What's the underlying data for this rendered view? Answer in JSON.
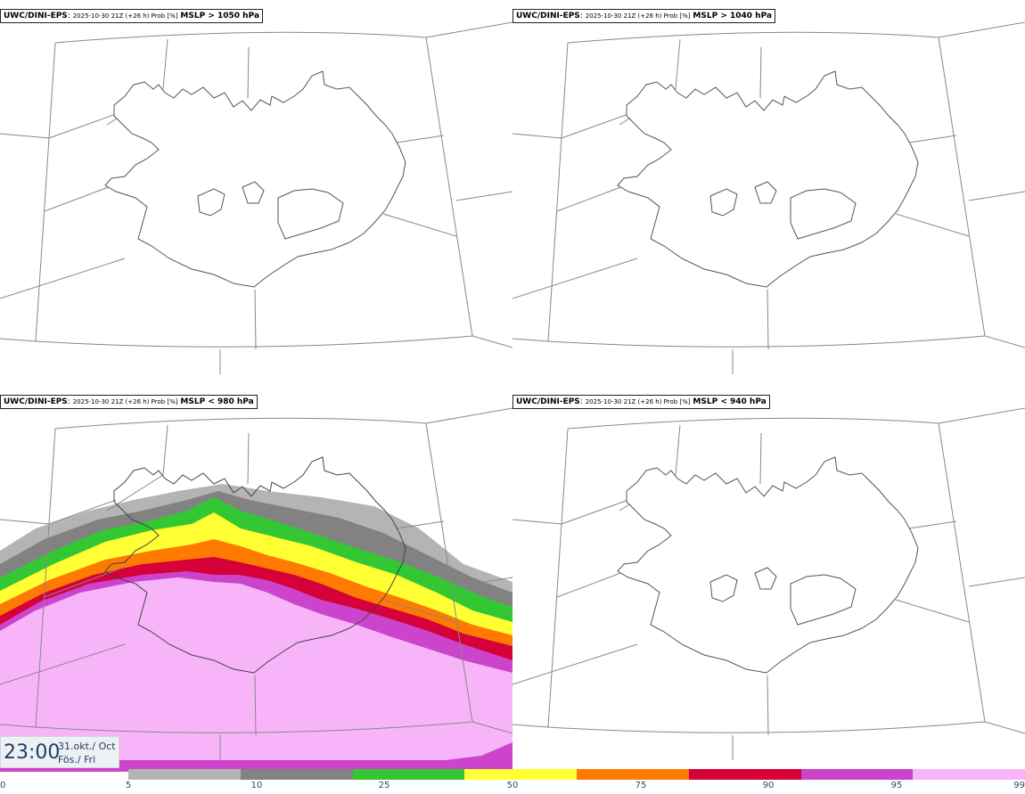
{
  "panels": [
    {
      "model": "UWC/DINI-EPS",
      "meta": "2025-10-30 21Z (+26 h) Prob [%]",
      "param": "MSLP > 1050 hPa",
      "filled": false
    },
    {
      "model": "UWC/DINI-EPS",
      "meta": "2025-10-30 21Z (+26 h) Prob [%]",
      "param": "MSLP > 1040 hPa",
      "filled": false
    },
    {
      "model": "UWC/DINI-EPS",
      "meta": "2025-10-30 21Z (+26 h) Prob [%]",
      "param": "MSLP < 980 hPa",
      "filled": true
    },
    {
      "model": "UWC/DINI-EPS",
      "meta": "2025-10-30 21Z (+26 h) Prob [%]",
      "param": "MSLP < 940 hPa",
      "filled": false
    }
  ],
  "clock": {
    "time": "23:00",
    "date": "31.okt./ Oct",
    "day": "Fös./ Fri"
  },
  "legend": {
    "ticks": [
      "0",
      "5",
      "10",
      "25",
      "50",
      "75",
      "90",
      "95",
      "99"
    ],
    "colors": [
      "#b4b4b4",
      "#828282",
      "#33c733",
      "#ffff33",
      "#ff7a00",
      "#d6003a",
      "#cc44cc",
      "#f8b4f8"
    ]
  },
  "colors": {
    "coast": "#555555",
    "grid": "#888888"
  }
}
